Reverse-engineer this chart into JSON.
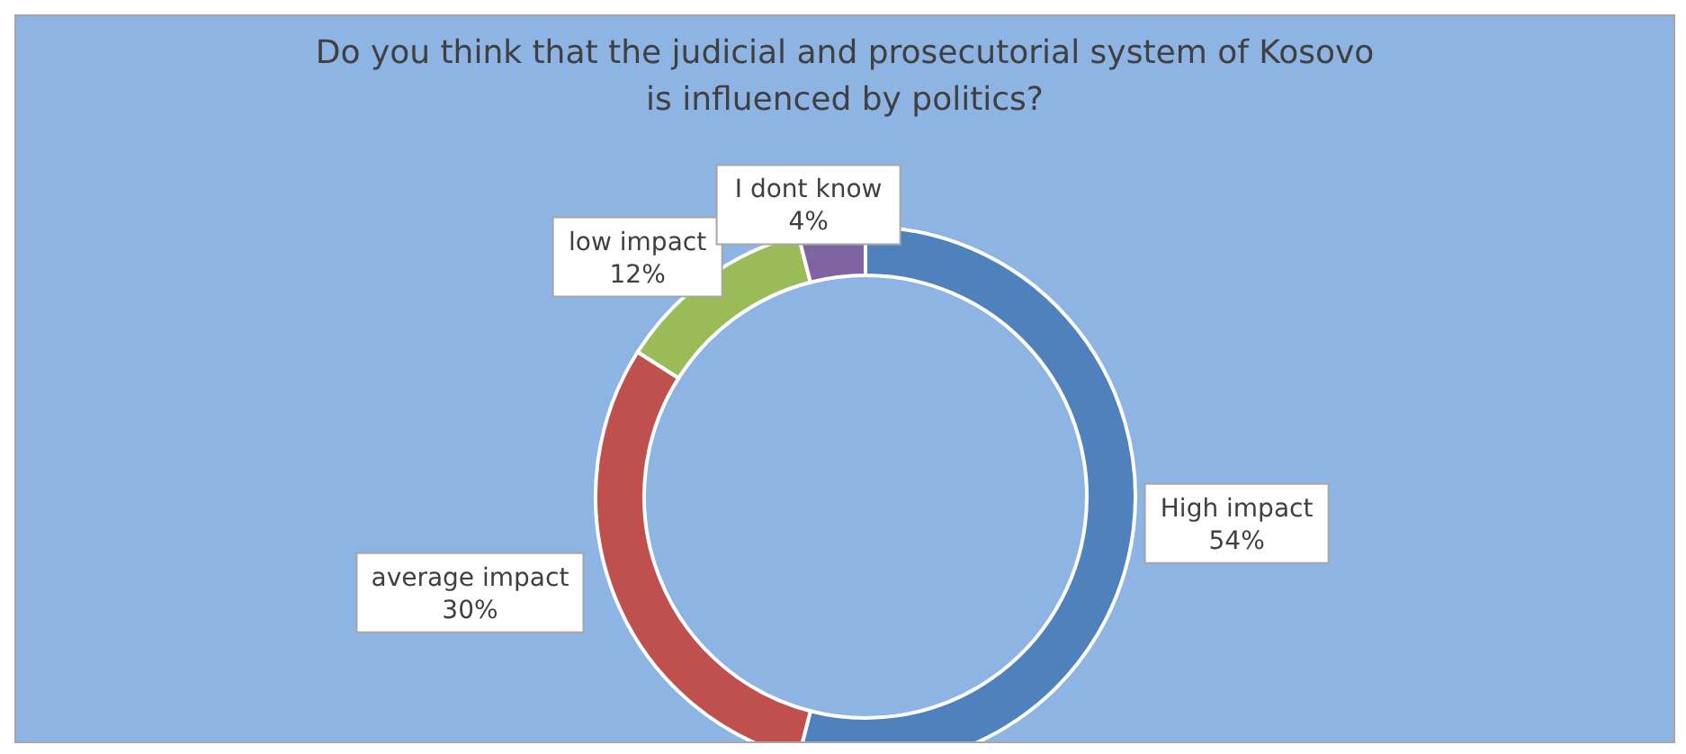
{
  "chart_data": {
    "type": "donut",
    "title": "Do you think that the judicial and prosecutorial system of Kosovo is influenced by politics?",
    "categories": [
      "High impact",
      "average impact",
      "low impact",
      "I dont know"
    ],
    "values": [
      54,
      30,
      12,
      4
    ],
    "value_labels": [
      "54%",
      "30%",
      "12%",
      "4%"
    ],
    "colors": [
      "#4f81bd",
      "#c0504d",
      "#9bbb59",
      "#8064a2"
    ],
    "legend": false
  }
}
